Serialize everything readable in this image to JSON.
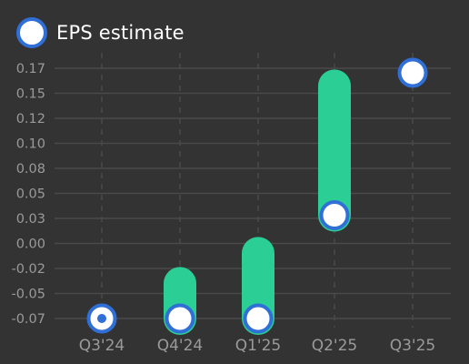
{
  "legend": {
    "label": "EPS estimate",
    "marker_color": "#2f6fd6"
  },
  "colors": {
    "background": "#333333",
    "grid": "#4a4a4a",
    "tick_text": "#9a9a9a",
    "range_bar": "#2bcf95",
    "marker_fill": "#ffffff",
    "marker_stroke": "#2f6fd6"
  },
  "chart_data": {
    "type": "range-bar",
    "categories": [
      "Q3'24",
      "Q4'24",
      "Q1'25",
      "Q2'25",
      "Q3'25"
    ],
    "y_ticks": [
      "0.17",
      "0.15",
      "0.12",
      "0.10",
      "0.08",
      "0.05",
      "0.03",
      "0.00",
      "-0.02",
      "-0.05",
      "-0.07"
    ],
    "ylim": [
      -0.075,
      0.17
    ],
    "series": [
      {
        "name": "EPS estimate",
        "values": [
          -0.075,
          -0.075,
          -0.075,
          0.028,
          0.17
        ]
      }
    ],
    "ranges": [
      {
        "low": null,
        "high": null
      },
      {
        "low": -0.075,
        "high": -0.04
      },
      {
        "low": -0.075,
        "high": -0.01
      },
      {
        "low": 0.028,
        "high": 0.157
      },
      {
        "low": null,
        "high": null
      }
    ],
    "actual_marker_category": "Q3'24",
    "grid": true,
    "legend_position": "top-left"
  }
}
